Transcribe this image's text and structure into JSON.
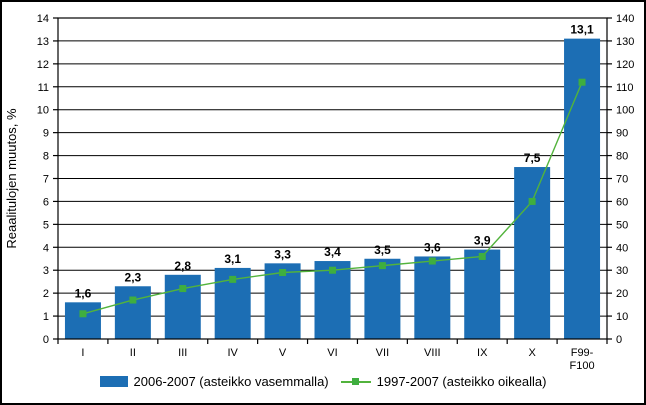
{
  "chart_data": {
    "type": "bar",
    "title": "",
    "categories": [
      "I",
      "II",
      "III",
      "IV",
      "V",
      "VI",
      "VII",
      "VIII",
      "IX",
      "X",
      "F99-\nF100"
    ],
    "series": [
      {
        "name": "2006-2007 (asteikko vasemmalla)",
        "type": "bar",
        "axis": "left",
        "values": [
          1.6,
          2.3,
          2.8,
          3.1,
          3.3,
          3.4,
          3.5,
          3.6,
          3.9,
          7.5,
          13.1
        ],
        "value_labels": [
          "1,6",
          "2,3",
          "2,8",
          "3,1",
          "3,3",
          "3,4",
          "3,5",
          "3,6",
          "3,9",
          "7,5",
          "13,1"
        ],
        "color": "#1c6eb4"
      },
      {
        "name": "1997-2007 (asteikko oikealla)",
        "type": "line",
        "axis": "right",
        "values": [
          11,
          17,
          22,
          26,
          29,
          30,
          32,
          34,
          36,
          60,
          112
        ],
        "color": "#52b33c",
        "marker_color": "#3fae3f"
      }
    ],
    "left_axis": {
      "title": "Reaalitulojen muutos, %",
      "min": 0,
      "max": 14,
      "step": 1,
      "tick_labels": [
        "0",
        "1",
        "2",
        "3",
        "4",
        "5",
        "6",
        "7",
        "8",
        "9",
        "10",
        "11",
        "12",
        "13",
        "14"
      ]
    },
    "right_axis": {
      "min": 0,
      "max": 140,
      "step": 10,
      "tick_labels": [
        "0",
        "10",
        "20",
        "30",
        "40",
        "50",
        "60",
        "70",
        "80",
        "90",
        "100",
        "110",
        "120",
        "130",
        "140"
      ]
    },
    "grid": true,
    "gridline_color": "#000000",
    "legend_position": "bottom",
    "text_color": "#000000",
    "background_color": "#ffffff"
  }
}
